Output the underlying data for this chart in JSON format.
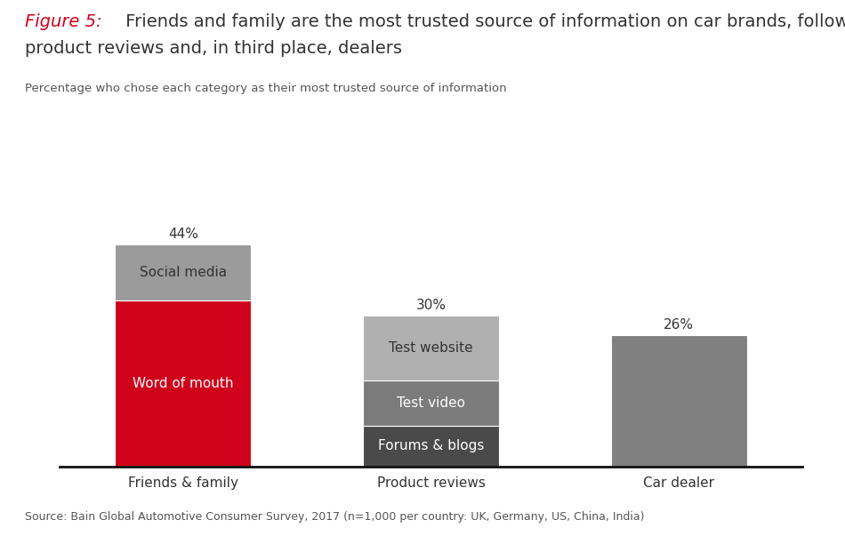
{
  "categories": [
    "Friends & family",
    "Product reviews",
    "Car dealer"
  ],
  "total_labels": [
    "44%",
    "30%",
    "26%"
  ],
  "bars": [
    {
      "category": "Friends & family",
      "segments": [
        {
          "label": "Word of mouth",
          "value": 33,
          "color": "#d0021b",
          "text_color": "#ffffff"
        },
        {
          "label": "Social media",
          "value": 11,
          "color": "#9b9b9b",
          "text_color": "#333333"
        }
      ]
    },
    {
      "category": "Product reviews",
      "segments": [
        {
          "label": "Forums & blogs",
          "value": 8,
          "color": "#4a4a4a",
          "text_color": "#ffffff"
        },
        {
          "label": "Test video",
          "value": 9,
          "color": "#7b7b7b",
          "text_color": "#ffffff"
        },
        {
          "label": "Test website",
          "value": 13,
          "color": "#b0b0b0",
          "text_color": "#333333"
        }
      ]
    },
    {
      "category": "Car dealer",
      "segments": [
        {
          "label": "",
          "value": 26,
          "color": "#808080",
          "text_color": "#ffffff"
        }
      ]
    }
  ],
  "figure_label": "Figure 5:",
  "title_line1": " Friends and family are the most trusted source of information on car brands, followed by",
  "title_line2": "product reviews and, in third place, dealers",
  "subtitle": "Percentage who chose each category as their most trusted source of information",
  "source": "Source: Bain Global Automotive Consumer Survey, 2017 (n=1,000 per country: UK, Germany, US, China, India)",
  "bar_width": 0.55,
  "ylim": [
    0,
    50
  ],
  "background_color": "#ffffff",
  "axis_line_color": "#111111",
  "label_fontsize": 11,
  "tick_fontsize": 11,
  "title_fontsize": 14,
  "subtitle_fontsize": 9.5,
  "source_fontsize": 9
}
